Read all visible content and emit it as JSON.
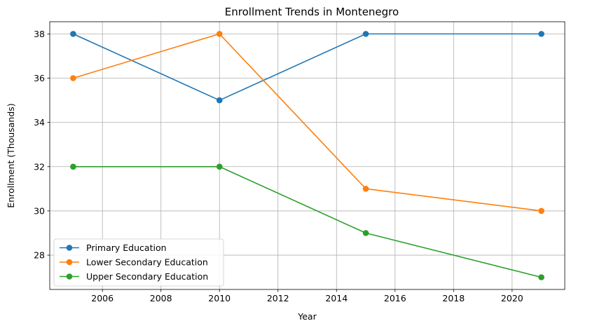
{
  "chart_data": {
    "type": "line",
    "title": "Enrollment Trends in Montenegro",
    "xlabel": "Year",
    "ylabel": "Enrollment (Thousands)",
    "x": [
      2005,
      2010,
      2015,
      2021
    ],
    "xlim": [
      2004.2,
      2021.8
    ],
    "ylim": [
      26.45,
      38.55
    ],
    "xticks": [
      2006,
      2008,
      2010,
      2012,
      2014,
      2016,
      2018,
      2020
    ],
    "yticks": [
      28,
      30,
      32,
      34,
      36,
      38
    ],
    "grid": true,
    "legend_position": "lower-left",
    "series": [
      {
        "name": "Primary Education",
        "color": "#1f77b4",
        "values": [
          38,
          35,
          38,
          38
        ]
      },
      {
        "name": "Lower Secondary Education",
        "color": "#ff7f0e",
        "values": [
          36,
          38,
          31,
          30
        ]
      },
      {
        "name": "Upper Secondary Education",
        "color": "#2ca02c",
        "values": [
          32,
          32,
          29,
          27
        ]
      }
    ]
  }
}
